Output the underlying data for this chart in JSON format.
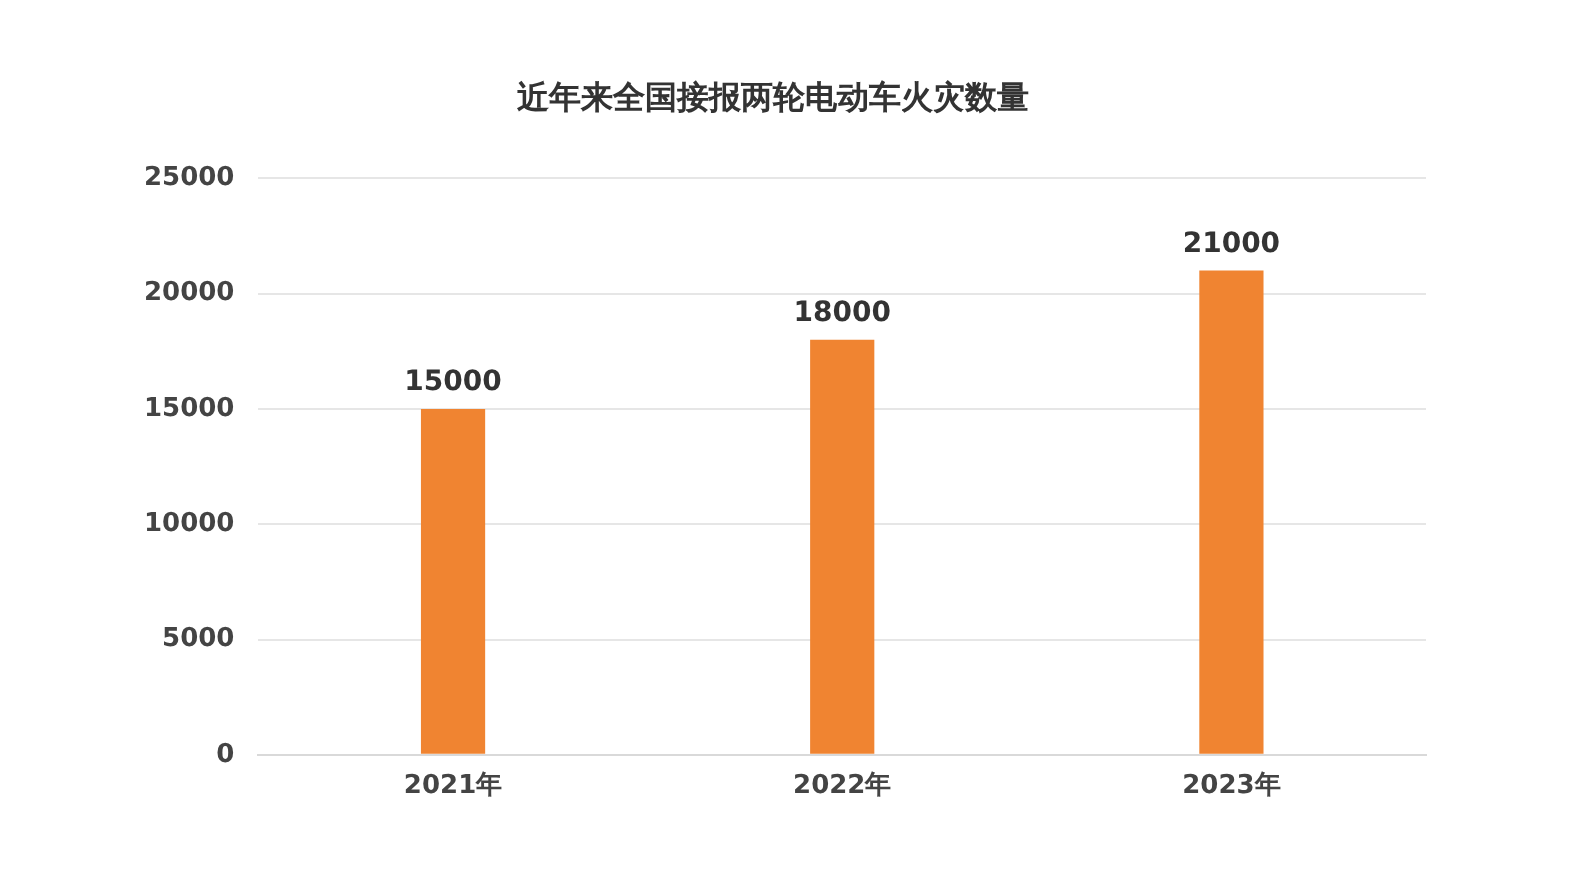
{
  "chart_data": {
    "type": "bar",
    "title": "近年来全国接报两轮电动车火灾数量",
    "categories": [
      "2021年",
      "2022年",
      "2023年"
    ],
    "values": [
      15000,
      18000,
      21000
    ],
    "color": "#f08431",
    "ylim": [
      0,
      25000
    ],
    "yticks": [
      0,
      5000,
      10000,
      15000,
      20000,
      25000
    ],
    "grid": "y",
    "data_labels": true
  }
}
